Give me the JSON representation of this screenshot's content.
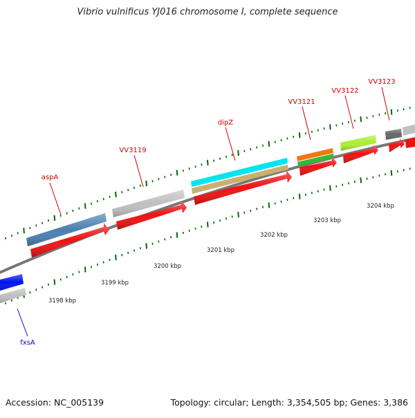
{
  "title": "Vibrio vulnificus YJ016 chromosome I, complete sequence",
  "footer": {
    "accession": "Accession: NC_005139",
    "summary": "Topology: circular; Length: 3,354,505 bp; Genes: 3,386"
  },
  "scale": {
    "unit": "kbp",
    "labels": [
      "3198 kbp",
      "3199 kbp",
      "3200 kbp",
      "3201 kbp",
      "3202 kbp",
      "3203 kbp",
      "3204 kbp"
    ]
  },
  "genes": {
    "labels": [
      "aspA",
      "VV3119",
      "dipZ",
      "VV3121",
      "VV3122",
      "VV3123",
      "fxsA"
    ]
  },
  "colors": {
    "label_red": "#cc0000",
    "label_blue": "#0000cc",
    "cds": "#ee1111",
    "steelblue": "#4a7fb0",
    "gray": "#c0c0c0",
    "cyan": "#00e5ee",
    "khaki": "#c8b070",
    "orange": "#ee7711",
    "green": "#33bb33",
    "lime": "#aaee33",
    "darkgray": "#666666",
    "blue": "#0011ee",
    "tick_green": "#006600",
    "axis_gray": "#777777"
  }
}
